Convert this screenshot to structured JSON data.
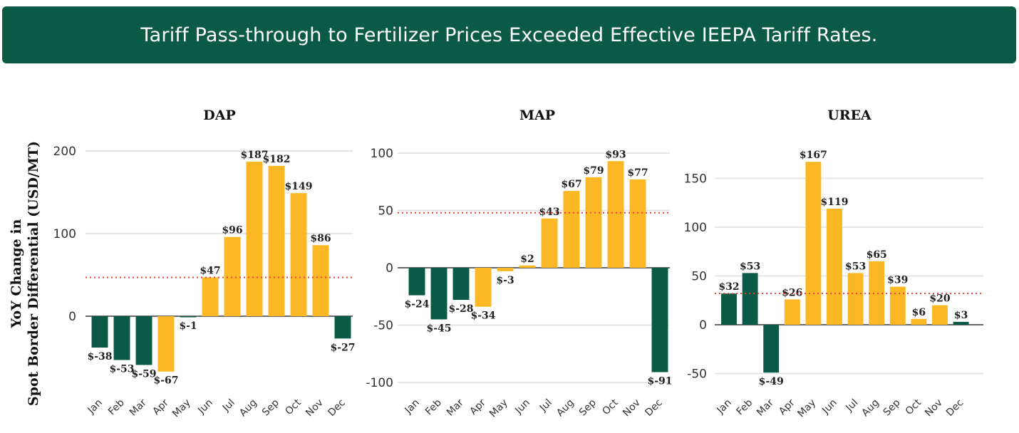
{
  "banner": {
    "title": "Tariff Pass-through to Fertilizer Prices Exceeded Effective IEEPA Tariff Rates."
  },
  "y_axis_label": {
    "line1": "YoY Change in",
    "line2": "Spot Border Differential (USD/MT)"
  },
  "colors": {
    "banner": "#0b5a45",
    "negative_or_below": "#0b5a45",
    "above": "#fbb824",
    "reference_line": "#e8403a",
    "grid": "#e6e6e6"
  },
  "chart_data": [
    {
      "type": "bar",
      "title": "DAP",
      "categories": [
        "Jan",
        "Feb",
        "Mar",
        "Apr",
        "May",
        "Jun",
        "Jul",
        "Aug",
        "Sep",
        "Oct",
        "Nov",
        "Dec"
      ],
      "values": [
        -38,
        -53,
        -59,
        -67,
        -1,
        47,
        96,
        187,
        182,
        149,
        86,
        -27
      ],
      "labels": [
        "$-38",
        "$-53",
        "$-59",
        "$-67",
        "$-1",
        "$47",
        "$96",
        "$187",
        "$182",
        "$149",
        "$86",
        "$-27"
      ],
      "bar_colors": [
        "green",
        "green",
        "green",
        "yellow",
        "green",
        "yellow",
        "yellow",
        "yellow",
        "yellow",
        "yellow",
        "yellow",
        "green"
      ],
      "reference_line": 47,
      "yticks": [
        0,
        100,
        200
      ],
      "ylim": [
        -100,
        225
      ]
    },
    {
      "type": "bar",
      "title": "MAP",
      "categories": [
        "Jan",
        "Feb",
        "Mar",
        "Apr",
        "May",
        "Jun",
        "Jul",
        "Aug",
        "Sep",
        "Oct",
        "Nov",
        "Dec"
      ],
      "values": [
        -24,
        -45,
        -28,
        -34,
        -3,
        2,
        43,
        67,
        79,
        93,
        77,
        -91
      ],
      "labels": [
        "$-24",
        "$-45",
        "$-28",
        "$-34",
        "$-3",
        "$2",
        "$43",
        "$67",
        "$79",
        "$93",
        "$77",
        "$-91"
      ],
      "bar_colors": [
        "green",
        "green",
        "green",
        "yellow",
        "yellow",
        "yellow",
        "yellow",
        "yellow",
        "yellow",
        "yellow",
        "yellow",
        "green"
      ],
      "reference_line": 48,
      "yticks": [
        -100,
        -50,
        0,
        50,
        100
      ],
      "ylim": [
        -105,
        110
      ]
    },
    {
      "type": "bar",
      "title": "UREA",
      "categories": [
        "Jan",
        "Feb",
        "Mar",
        "Apr",
        "May",
        "Jun",
        "Jul",
        "Aug",
        "Sep",
        "Oct",
        "Nov",
        "Dec"
      ],
      "values": [
        32,
        53,
        -49,
        26,
        167,
        119,
        53,
        65,
        39,
        6,
        20,
        3
      ],
      "labels": [
        "$32",
        "$53",
        "$-49",
        "$26",
        "$167",
        "$119",
        "$53",
        "$65",
        "$39",
        "$6",
        "$20",
        "$3"
      ],
      "bar_colors": [
        "green",
        "green",
        "green",
        "yellow",
        "yellow",
        "yellow",
        "yellow",
        "yellow",
        "yellow",
        "yellow",
        "yellow",
        "green"
      ],
      "reference_line": 32,
      "yticks": [
        -50,
        0,
        50,
        100,
        150
      ],
      "ylim": [
        -60,
        175
      ]
    }
  ]
}
